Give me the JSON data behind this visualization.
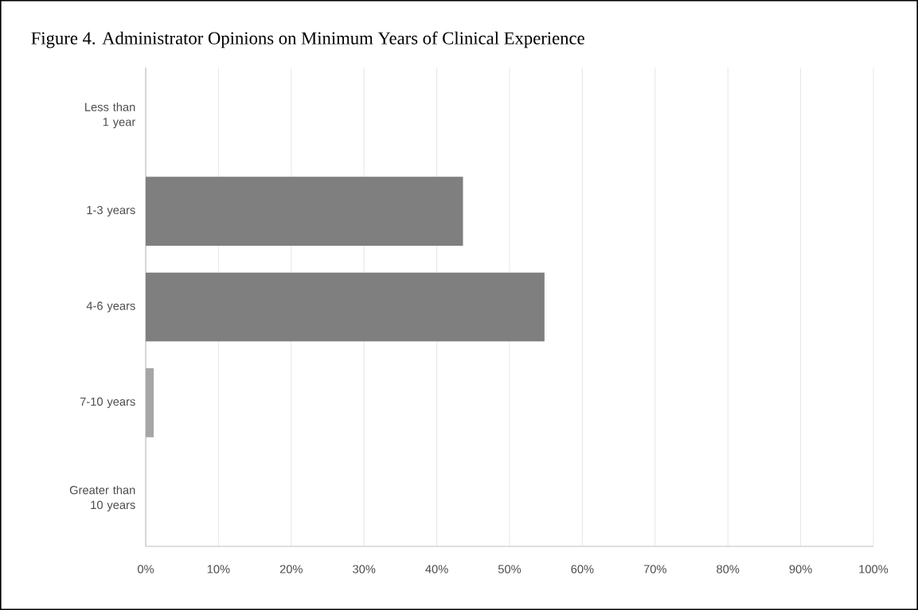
{
  "chart_data": {
    "type": "bar",
    "orientation": "horizontal",
    "title": "Figure 4. Administrator Opinions on Minimum Years of Clinical Experience",
    "categories": [
      "Less than 1 year",
      "1-3 years",
      "4-6 years",
      "7-10 years",
      "Greater than 10 years"
    ],
    "values": [
      0,
      43.6,
      54.8,
      1.1,
      0
    ],
    "colors": [
      "#7f7f7f",
      "#7f7f7f",
      "#7f7f7f",
      "#a6a6a6",
      "#7f7f7f"
    ],
    "xlim": [
      0,
      100
    ],
    "xticks": [
      {
        "value": 0,
        "label": "0%"
      },
      {
        "value": 10,
        "label": "10%"
      },
      {
        "value": 20,
        "label": "20%"
      },
      {
        "value": 30,
        "label": "30%"
      },
      {
        "value": 40,
        "label": "40%"
      },
      {
        "value": 50,
        "label": "50%"
      },
      {
        "value": 60,
        "label": "60%"
      },
      {
        "value": 70,
        "label": "70%"
      },
      {
        "value": 80,
        "label": "80%"
      },
      {
        "value": 90,
        "label": "90%"
      },
      {
        "value": 100,
        "label": "100%"
      }
    ],
    "grid": "x"
  }
}
